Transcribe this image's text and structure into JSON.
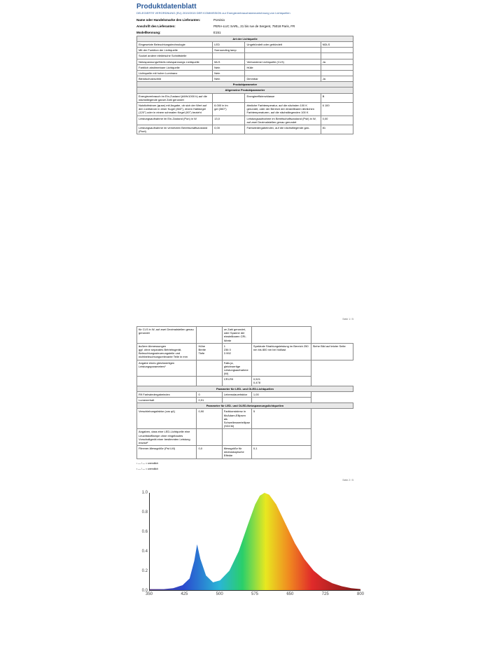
{
  "title": "Produktdatenblatt",
  "subtitle": "DELEGIERTE VERORDNUNG (EU) 2019/2015 DER KOMMISSION zur Energieverbrauchskennzeichnung von Lichtquellen",
  "supplier_label": "Name oder Handelsmarke des Lieferanten:",
  "supplier": "Porvisio",
  "addr_label": "Anschrift des Lieferanten:",
  "addr": "PERA-LUC SARL, 21 bis rue de Sergent, 75018 Paris, FR",
  "model_label": "Modellkennung:",
  "model": "E151",
  "sect0": "Art der Lichtquelle",
  "r": [
    [
      "Eingesetzte Beleuchtungstechnologie",
      "LED",
      "Ungebündelt oder gebündelt",
      "NDLS"
    ],
    [
      "Mit der Funktion der Lichtquelle",
      "Surrounding lamp",
      "",
      ""
    ],
    [
      "Sockel andere elektrische Schnittstelle",
      "",
      "",
      ""
    ],
    [
      "Netzspannungs/Nicht-netzspannungs Lichtquelle",
      "MLS",
      "Verbundene Lichtquelle (CLS)",
      "Ja"
    ],
    [
      "Farblich abstimmbare Lichtquelle",
      "Nein",
      "Hülle",
      ""
    ],
    [
      "Lichtquelle mit hoher Luminanz",
      "Nein",
      "",
      ""
    ],
    [
      "Blendschutzschild",
      "Nein",
      "Dimmbar",
      "Ja"
    ]
  ],
  "sect1": "Produktparameter",
  "sect2": "Allgemeine Produktparameter",
  "r2": [
    [
      "Energieverbrauch im Ein-Zustand (kWh/1000 h) auf die nächstliegende ganze Zahl gerundet",
      "",
      "Energieeffizienzklasse",
      "B"
    ],
    [
      "Nutzlichtstrom (φuse) mit Angabe, ob sich der Wert auf den Lichtstrom in einer Kugel (360°), einem Halbkegel (120°) oder in einem schmalen Kegel (90°) bezieht",
      "6.000 in lm<br>gel (360°)",
      "ähnliche Farbtemperatur, auf die nächsten 100 K gerundet, oder der Bereich der einstellbaren ähnlichen Farbtemperaturen, auf die nächstliegenden 100 K",
      "6 100"
    ],
    [
      "Leistungsaufnahme im Ein-Zustand (Pon) in W",
      "13,0",
      "Leistungsaufnahme im Bereitschaftszustand (Psb) in W, auf zwei Dezimalstellen genau gerundet",
      "0,00"
    ],
    [
      "Leistungsaufnahme im vernetzten Bereitschaftszustand (Pnet)",
      "0,00",
      "Farbwiedergabeindex, auf die nächstliegende gan-",
      "81"
    ]
  ],
  "pg1foot": "Seite 1 / 5",
  "r3": [
    [
      "für CLS in W, auf zwei Dezimalstellen genau gerundet",
      "",
      "ze Zahl gerundet, oder Spanne der einstellbaren CRI-Werte",
      ""
    ],
    [
      "äußere Abmessungen<br>ggf. ohne separates Betriebsgerät, Beleuchtungssteuerungsteile und nichtbeleuchtungsrelevante Teile in mm",
      "Höhe<br>Breite<br>Tiefe",
      "1<br>236 0<br>3 992",
      "Spektrale Strahlungsleistung im Bereich 250 nm bis 800 nm bei Volllast",
      "Siehe Bild auf letzter Seite"
    ],
    [
      "Angabe eines gleichwertigen Leistungsparameters¹",
      "",
      "Falls ja, gleichwertige Leistungsaufnahme (W)",
      ""
    ],
    [
      "",
      "",
      "CRI-R9",
      "0,521<br>0,478"
    ]
  ],
  "sect3": "Parameter für LED- und OLED-Lichtquellen",
  "r4": [
    [
      "R9 Farbwiedergabeindex",
      "0",
      "Lebensdauerfaktor",
      "1,00"
    ],
    [
      "Lumenerhalt",
      "0,91",
      "",
      ""
    ]
  ],
  "sect4": "Parameter für LED- und OLED-Netzspannungslichtquellen",
  "r5": [
    [
      "Verschiebungsfaktor (cos φ1)",
      "0,90",
      "Farbkonsistenz in McAdam-Ellipsen als Schwellenwertellipse (SDCM)",
      "5"
    ],
    [
      "Angaben, dass eine LED-Lichtquelle eine Leuchtstofflampe ohne eingebautes Vorschaltgerät einer bestimmten Leistung ersetzt²",
      "",
      "",
      ""
    ],
    [
      "Flimmer-Messgröße (Pst LM)",
      "0,0",
      "Messgröße für stroboskopische Effekte",
      "0,1"
    ]
  ],
  "foot1": "¹ — / — = unendlich",
  "foot2": "² — / — = unendlich",
  "pg2foot": "Seite 2 / 5",
  "chart": {
    "ylim": [
      0,
      1
    ],
    "yticks": [
      0,
      0.2,
      0.4,
      0.6,
      0.8,
      1.0
    ],
    "xlim": [
      350,
      800
    ],
    "xticks": [
      350,
      425,
      500,
      575,
      650,
      725,
      800
    ],
    "grad_stops": [
      {
        "o": 0,
        "c": "#5a3a8a"
      },
      {
        "o": 16,
        "c": "#2a4acf"
      },
      {
        "o": 33,
        "c": "#2ab5d6"
      },
      {
        "o": 44,
        "c": "#2acf6a"
      },
      {
        "o": 55,
        "c": "#e8e820"
      },
      {
        "o": 66,
        "c": "#f08a20"
      },
      {
        "o": 77,
        "c": "#e02a2a"
      },
      {
        "o": 100,
        "c": "#7a1a1a"
      }
    ],
    "pts": [
      [
        350,
        0.01
      ],
      [
        380,
        0.01
      ],
      [
        400,
        0.02
      ],
      [
        420,
        0.05
      ],
      [
        435,
        0.12
      ],
      [
        445,
        0.3
      ],
      [
        451,
        0.47
      ],
      [
        458,
        0.32
      ],
      [
        470,
        0.15
      ],
      [
        485,
        0.08
      ],
      [
        500,
        0.1
      ],
      [
        520,
        0.2
      ],
      [
        540,
        0.4
      ],
      [
        560,
        0.68
      ],
      [
        575,
        0.88
      ],
      [
        585,
        0.97
      ],
      [
        595,
        1.0
      ],
      [
        605,
        0.98
      ],
      [
        620,
        0.88
      ],
      [
        640,
        0.68
      ],
      [
        660,
        0.48
      ],
      [
        680,
        0.32
      ],
      [
        700,
        0.2
      ],
      [
        720,
        0.12
      ],
      [
        740,
        0.07
      ],
      [
        760,
        0.04
      ],
      [
        780,
        0.02
      ],
      [
        800,
        0.01
      ]
    ]
  }
}
